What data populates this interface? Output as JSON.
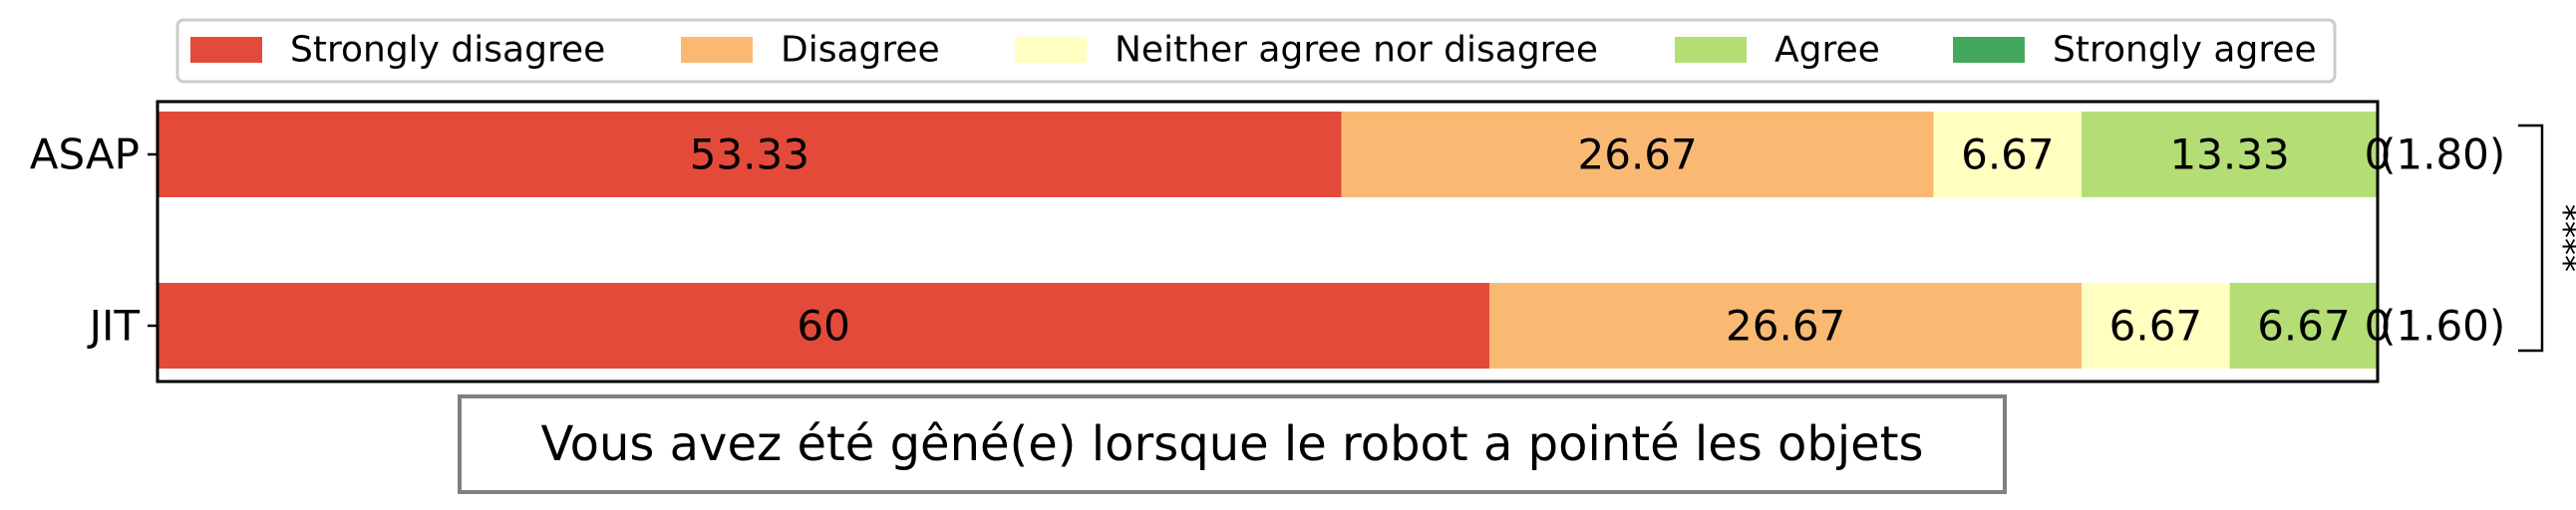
{
  "chart_data": {
    "type": "bar",
    "orientation": "horizontal",
    "stacked": true,
    "title": "Vous avez été gêné(e) lorsque le robot a pointé les objets",
    "categories": [
      "ASAP",
      "JIT"
    ],
    "series": [
      {
        "name": "Strongly disagree",
        "color": "#e34a3a",
        "values": [
          53.33,
          60
        ]
      },
      {
        "name": "Disagree",
        "color": "#f9b973",
        "values": [
          26.67,
          26.67
        ]
      },
      {
        "name": "Neither agree nor disagree",
        "color": "#ffffc0",
        "values": [
          6.67,
          6.67
        ]
      },
      {
        "name": "Agree",
        "color": "#b4dd75",
        "values": [
          13.33,
          6.67
        ]
      },
      {
        "name": "Strongly agree",
        "color": "#43a85c",
        "values": [
          0,
          0
        ]
      }
    ],
    "value_labels": [
      [
        "53.33",
        "26.67",
        "6.67",
        "13.33",
        "0"
      ],
      [
        "60",
        "26.67",
        "6.67",
        "6.67",
        "0"
      ]
    ],
    "mean_labels": [
      "(1.80)",
      "(1.60)"
    ],
    "significance": "****",
    "xlim": [
      0,
      100
    ],
    "legend_position": "top",
    "grid": false
  }
}
